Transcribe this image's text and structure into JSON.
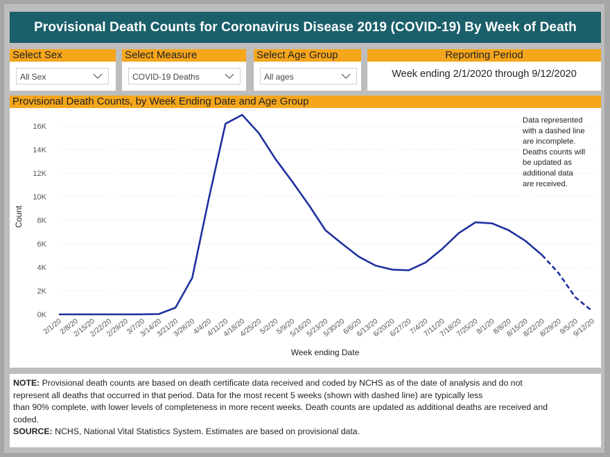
{
  "title": "Provisional Death Counts for Coronavirus Disease 2019 (COVID-19) By Week of Death",
  "filters": {
    "sex": {
      "label": "Select Sex",
      "value": "All Sex"
    },
    "measure": {
      "label": "Select Measure",
      "value": "COVID-19 Deaths"
    },
    "age": {
      "label": "Select Age Group",
      "value": "All ages"
    },
    "period": {
      "label": "Reporting Period",
      "value": "Week ending 2/1/2020 through 9/12/2020"
    }
  },
  "chart_panel": {
    "header": "Provisional Death Counts, by Week Ending Date and Age Group",
    "annotation": [
      "Data represented",
      "with a dashed line",
      "are incomplete.",
      "Deaths counts will",
      "be updated as",
      "additional data",
      "are received."
    ]
  },
  "chart_data": {
    "type": "line",
    "x": [
      "2/1/20",
      "2/8/20",
      "2/15/20",
      "2/22/20",
      "2/29/20",
      "3/7/20",
      "3/14/20",
      "3/21/20",
      "3/28/20",
      "4/4/20",
      "4/11/20",
      "4/18/20",
      "4/25/20",
      "5/2/20",
      "5/9/20",
      "5/16/20",
      "5/23/20",
      "5/30/20",
      "6/6/20",
      "6/13/20",
      "6/20/20",
      "6/27/20",
      "7/4/20",
      "7/11/20",
      "7/18/20",
      "7/25/20",
      "8/1/20",
      "8/8/20",
      "8/15/20",
      "8/22/20",
      "8/29/20",
      "9/5/20",
      "9/12/20"
    ],
    "series": [
      {
        "values": [
          0,
          0,
          0,
          0,
          0,
          5,
          30,
          570,
          3100,
          9850,
          16200,
          16950,
          15400,
          13200,
          11300,
          9300,
          7150,
          6000,
          4900,
          4150,
          3800,
          3750,
          4400,
          5550,
          6900,
          7820,
          7730,
          7150,
          6250,
          5050,
          3500,
          1450,
          300
        ]
      }
    ],
    "dashed_from_index": 29,
    "xlabel": "Week ending Date",
    "ylabel": "Count",
    "yticks": [
      0,
      2000,
      4000,
      6000,
      8000,
      10000,
      12000,
      14000,
      16000
    ],
    "ytick_labels": [
      "0K",
      "2K",
      "4K",
      "6K",
      "8K",
      "10K",
      "12K",
      "14K",
      "16K"
    ],
    "ylim": [
      0,
      17300
    ],
    "grid": true,
    "line_color": "#1f2f9e"
  },
  "note": {
    "note_label": "NOTE:",
    "note_text": " Provisional death counts are based on death certificate data received and coded by NCHS as of the date of analysis and do not\nrepresent all deaths that occurred in that period. Data for the most recent 5 weeks (shown with dashed line) are typically less\nthan 90% complete, with lower levels of completeness in more recent weeks.  Death counts are updated as additional deaths are received and\ncoded.",
    "source_label": "SOURCE:",
    "source_text": " NCHS, National Vital Statistics System. Estimates are based on provisional data."
  }
}
